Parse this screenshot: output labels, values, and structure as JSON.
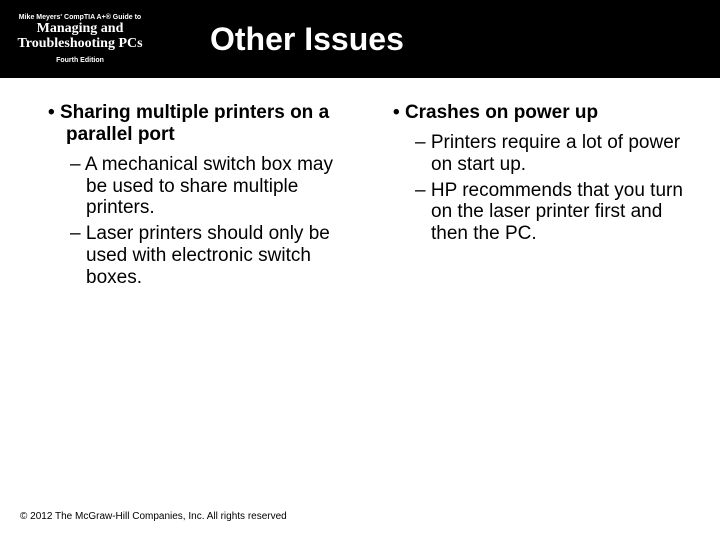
{
  "header": {
    "line1": "Mike Meyers' CompTIA A+® Guide to",
    "line2": "Managing and Troubleshooting PCs",
    "line3": "Fourth Edition",
    "title": "Other Issues"
  },
  "left": {
    "main": "Sharing multiple printers on a parallel port",
    "sub1": "A mechanical switch box may be used to share multiple printers.",
    "sub2": "Laser printers should only be used with electronic switch boxes."
  },
  "right": {
    "main": "Crashes on power up",
    "sub1": "Printers require a lot of power on start up.",
    "sub2": "HP recommends that you turn on the laser printer first and then the PC."
  },
  "footer": "© 2012 The McGraw-Hill Companies, Inc. All rights reserved"
}
